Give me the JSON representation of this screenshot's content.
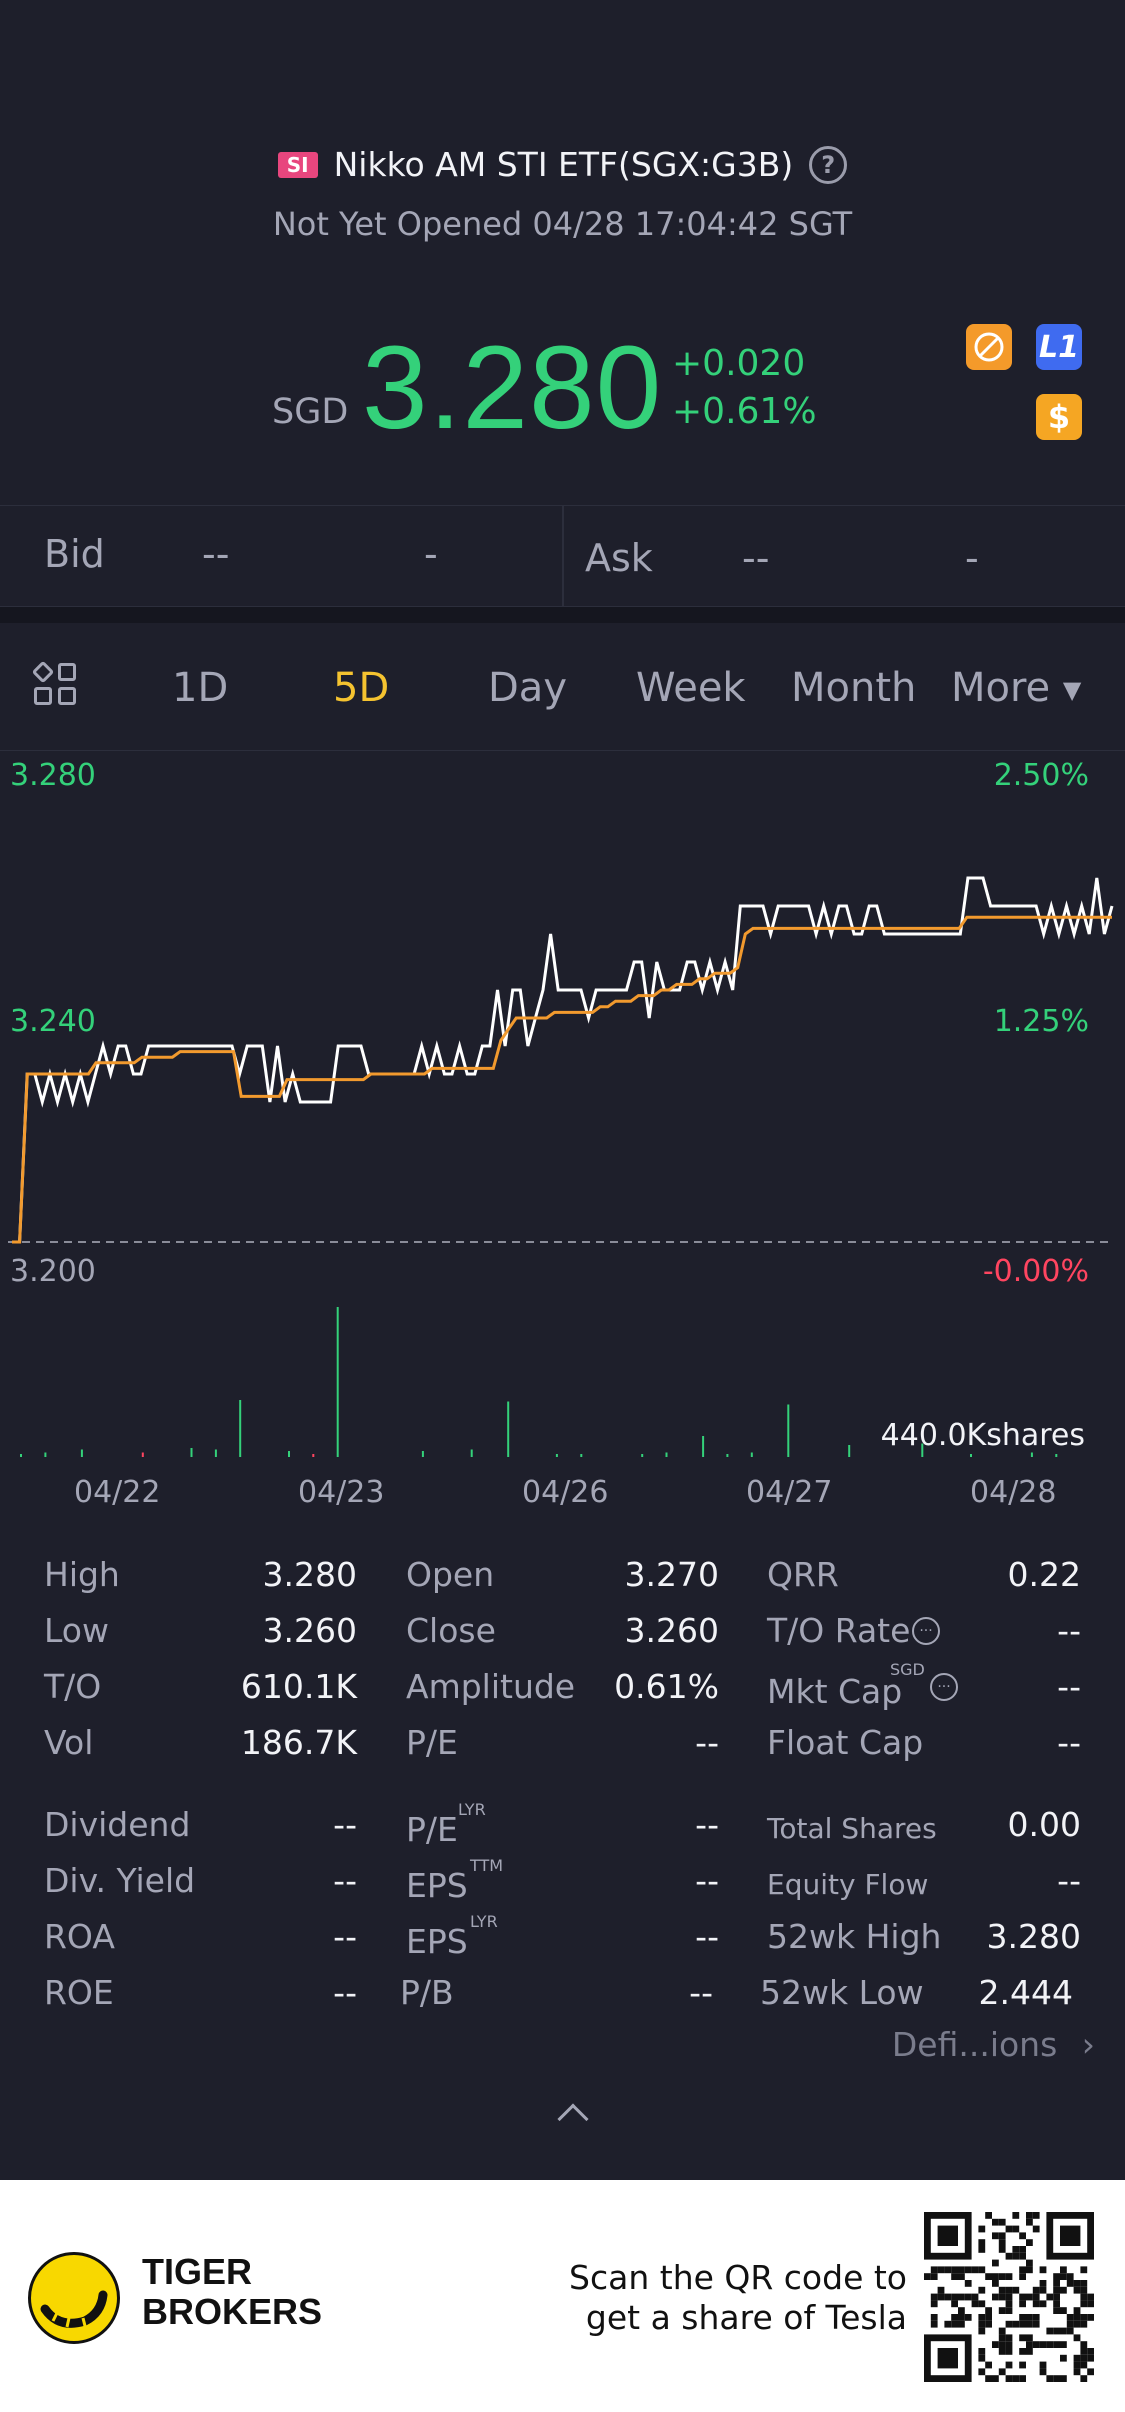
{
  "header": {
    "badge": "SI",
    "title": "Nikko AM STI ETF(SGX:G3B)",
    "help": "?",
    "status": "Not Yet Opened 04/28 17:04:42 SGT"
  },
  "quote": {
    "currency": "SGD",
    "price": "3.280",
    "change": "+0.020",
    "change_pct": "+0.61%",
    "badges": {
      "level": "L1",
      "currency_icon": "$"
    },
    "colors": {
      "up": "#34d17a",
      "down": "#ff4560",
      "accent": "#f5c330"
    }
  },
  "bidask": {
    "bid_label": "Bid",
    "bid_price": "--",
    "bid_size": "-",
    "ask_label": "Ask",
    "ask_price": "--",
    "ask_size": "-"
  },
  "tabs": {
    "items": [
      "1D",
      "5D",
      "Day",
      "Week",
      "Month",
      "More"
    ],
    "active": "5D"
  },
  "chart_data": {
    "type": "line",
    "left_axis": [
      "3.280",
      "3.240",
      "3.200"
    ],
    "right_axis": [
      "2.50%",
      "1.25%",
      "-0.00%"
    ],
    "ylim": [
      3.2,
      3.28
    ],
    "x_labels": [
      "04/22",
      "04/23",
      "04/26",
      "04/27",
      "04/28"
    ],
    "volume_label": "440.0Kshares",
    "series": [
      {
        "color": "#ffffff",
        "values": [
          3.2,
          3.2,
          3.23,
          3.23,
          3.225,
          3.23,
          3.225,
          3.23,
          3.225,
          3.23,
          3.225,
          3.23,
          3.235,
          3.23,
          3.235,
          3.235,
          3.23,
          3.23,
          3.235,
          3.235,
          3.235,
          3.235,
          3.235,
          3.235,
          3.235,
          3.235,
          3.235,
          3.235,
          3.235,
          3.235,
          3.23,
          3.235,
          3.235,
          3.235,
          3.225,
          3.235,
          3.225,
          3.23,
          3.225,
          3.225,
          3.225,
          3.225,
          3.225,
          3.235,
          3.235,
          3.235,
          3.235,
          3.23,
          3.23,
          3.23,
          3.23,
          3.23,
          3.23,
          3.23,
          3.235,
          3.23,
          3.235,
          3.23,
          3.23,
          3.235,
          3.23,
          3.23,
          3.235,
          3.235,
          3.245,
          3.235,
          3.245,
          3.245,
          3.235,
          3.24,
          3.245,
          3.255,
          3.245,
          3.245,
          3.245,
          3.245,
          3.24,
          3.245,
          3.245,
          3.245,
          3.245,
          3.245,
          3.25,
          3.25,
          3.24,
          3.25,
          3.245,
          3.245,
          3.245,
          3.25,
          3.25,
          3.245,
          3.25,
          3.245,
          3.25,
          3.245,
          3.26,
          3.26,
          3.26,
          3.26,
          3.255,
          3.26,
          3.26,
          3.26,
          3.26,
          3.26,
          3.255,
          3.26,
          3.255,
          3.26,
          3.26,
          3.255,
          3.255,
          3.26,
          3.26,
          3.255,
          3.255,
          3.255,
          3.255,
          3.255,
          3.255,
          3.255,
          3.255,
          3.255,
          3.255,
          3.255,
          3.265,
          3.265,
          3.265,
          3.26,
          3.26,
          3.26,
          3.26,
          3.26,
          3.26,
          3.26,
          3.255,
          3.26,
          3.255,
          3.26,
          3.255,
          3.26,
          3.255,
          3.265,
          3.255,
          3.26
        ]
      },
      {
        "color": "#f29a2e",
        "values": [
          3.2,
          3.2,
          3.23,
          3.23,
          3.23,
          3.23,
          3.23,
          3.23,
          3.23,
          3.23,
          3.23,
          3.232,
          3.232,
          3.232,
          3.232,
          3.232,
          3.232,
          3.233,
          3.233,
          3.233,
          3.233,
          3.233,
          3.234,
          3.234,
          3.234,
          3.234,
          3.234,
          3.234,
          3.234,
          3.234,
          3.226,
          3.226,
          3.226,
          3.226,
          3.226,
          3.226,
          3.229,
          3.229,
          3.229,
          3.229,
          3.229,
          3.229,
          3.229,
          3.229,
          3.229,
          3.229,
          3.229,
          3.23,
          3.23,
          3.23,
          3.23,
          3.23,
          3.23,
          3.23,
          3.23,
          3.231,
          3.231,
          3.231,
          3.231,
          3.231,
          3.231,
          3.231,
          3.231,
          3.231,
          3.236,
          3.238,
          3.24,
          3.24,
          3.24,
          3.24,
          3.24,
          3.241,
          3.241,
          3.241,
          3.241,
          3.241,
          3.241,
          3.242,
          3.242,
          3.243,
          3.243,
          3.243,
          3.244,
          3.244,
          3.244,
          3.245,
          3.245,
          3.246,
          3.246,
          3.246,
          3.247,
          3.247,
          3.248,
          3.248,
          3.248,
          3.249,
          3.255,
          3.256,
          3.256,
          3.256,
          3.256,
          3.256,
          3.256,
          3.256,
          3.256,
          3.256,
          3.256,
          3.256,
          3.256,
          3.256,
          3.256,
          3.256,
          3.256,
          3.256,
          3.256,
          3.256,
          3.256,
          3.256,
          3.256,
          3.256,
          3.256,
          3.256,
          3.256,
          3.256,
          3.256,
          3.258,
          3.258,
          3.258,
          3.258,
          3.258,
          3.258,
          3.258,
          3.258,
          3.258,
          3.258,
          3.258,
          3.258,
          3.258,
          3.258,
          3.258,
          3.258,
          3.258,
          3.258,
          3.258,
          3.258
        ]
      }
    ],
    "volume": [
      0.02,
      0,
      0.03,
      0,
      0,
      0.05,
      0,
      0,
      0,
      0,
      0.03,
      0,
      0,
      0,
      0.06,
      0,
      0.05,
      0,
      0.38,
      0,
      0,
      0,
      0.04,
      0,
      0.02,
      0,
      1.0,
      0,
      0,
      0,
      0,
      0,
      0,
      0.04,
      0,
      0,
      0,
      0.05,
      0,
      0,
      0.37,
      0,
      0,
      0,
      0.02,
      0,
      0.02,
      0,
      0,
      0,
      0,
      0.02,
      0,
      0.03,
      0,
      0,
      0.14,
      0,
      0.02,
      0,
      0.03,
      0,
      0,
      0.35,
      0,
      0,
      0,
      0,
      0.08,
      0,
      0,
      0,
      0,
      0,
      0.09,
      0,
      0,
      0,
      0.02,
      0,
      0,
      0,
      0,
      0.03,
      0,
      0.02,
      0,
      0,
      0,
      0
    ]
  },
  "stats": {
    "col1": [
      {
        "label": "High",
        "value": "3.280"
      },
      {
        "label": "Low",
        "value": "3.260"
      },
      {
        "label": "T/O",
        "value": "610.1K"
      },
      {
        "label": "Vol",
        "value": "186.7K"
      },
      {
        "label": "Dividend",
        "value": "--"
      },
      {
        "label": "Div. Yield",
        "value": "--"
      },
      {
        "label": "ROA",
        "value": "--"
      },
      {
        "label": "ROE",
        "value": "--"
      }
    ],
    "col2": [
      {
        "label": "Open",
        "value": "3.270"
      },
      {
        "label": "Close",
        "value": "3.260"
      },
      {
        "label": "Amplitude",
        "value": "0.61%"
      },
      {
        "label": "P/E",
        "value": "--"
      },
      {
        "label": "P/E",
        "sup": "LYR",
        "value": "--"
      },
      {
        "label": "EPS",
        "sup": "TTM",
        "value": "--"
      },
      {
        "label": "EPS",
        "sup": "LYR",
        "value": "--"
      },
      {
        "label": "P/B",
        "value": "--"
      }
    ],
    "col3": [
      {
        "label": "QRR",
        "value": "0.22"
      },
      {
        "label": "T/O Rate",
        "value": "--"
      },
      {
        "label": "Mkt Cap",
        "sup": "SGD",
        "value": "--"
      },
      {
        "label": "Float Cap",
        "value": "--"
      },
      {
        "label": "Total Shares",
        "value": "0.00"
      },
      {
        "label": "Equity Flow",
        "value": "--"
      },
      {
        "label": "52wk High",
        "value": "3.280"
      },
      {
        "label": "52wk Low",
        "value": "2.444"
      }
    ],
    "definitions_link": "Defi...ions"
  },
  "footer": {
    "brand_line1": "TIGER",
    "brand_line2": "BROKERS",
    "cta_line1": "Scan the QR code to",
    "cta_line2": "get a share of Tesla"
  }
}
